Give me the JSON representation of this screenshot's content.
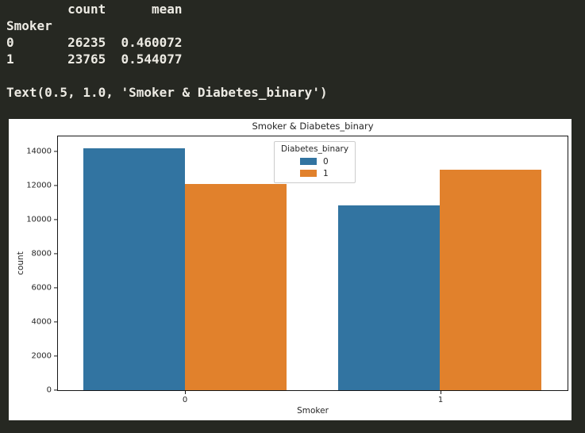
{
  "colors": {
    "page_bg": "#262822",
    "terminal_fg": "#edebe4",
    "figure_bg": "#ffffff",
    "blue": "#3274a1",
    "orange": "#e1812c"
  },
  "terminal": {
    "lines": [
      "        count      mean",
      "Smoker",
      "0       26235  0.460072",
      "1       23765  0.544077",
      "",
      "Text(0.5, 1.0, 'Smoker & Diabetes_binary')"
    ]
  },
  "chart_data": {
    "type": "bar",
    "title": "Smoker & Diabetes_binary",
    "xlabel": "Smoker",
    "ylabel": "count",
    "categories": [
      "0",
      "1"
    ],
    "series": [
      {
        "name": "0",
        "color": "#3274a1",
        "values": [
          14165,
          10835
        ]
      },
      {
        "name": "1",
        "color": "#e1812c",
        "values": [
          12070,
          12930
        ]
      }
    ],
    "legend_title": "Diabetes_binary",
    "legend_position": "upper center",
    "ylim": [
      0,
      14860
    ],
    "yticks": [
      0,
      2000,
      4000,
      6000,
      8000,
      10000,
      12000,
      14000
    ],
    "grid": false,
    "bar_group_width": 0.8
  }
}
